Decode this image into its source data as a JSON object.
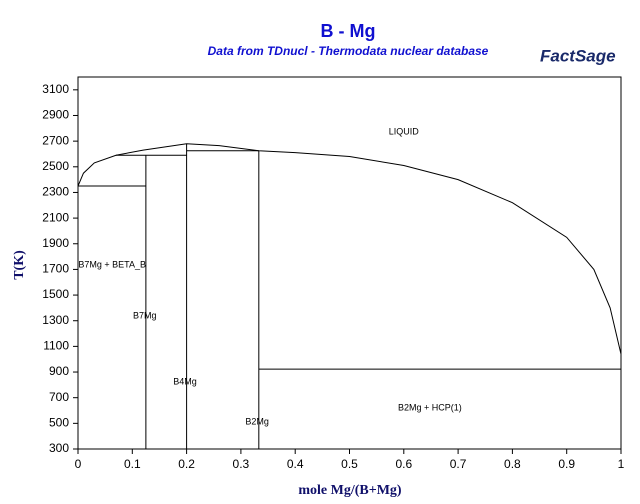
{
  "logo": "FactSage",
  "chart_data": {
    "type": "line",
    "title": "B - Mg",
    "subtitle": "Data from TDnucl - Thermodata nuclear database",
    "x_label": "mole Mg/(B+Mg)",
    "y_label": "T(K)",
    "xlim": [
      0,
      1
    ],
    "ylim": [
      300,
      3200
    ],
    "xticks": [
      0,
      0.1,
      0.2,
      0.3,
      0.4,
      0.5,
      0.6,
      0.7,
      0.8,
      0.9,
      1
    ],
    "yticks": [
      300,
      500,
      700,
      900,
      1100,
      1300,
      1500,
      1700,
      1900,
      2100,
      2300,
      2500,
      2700,
      2900,
      3100
    ],
    "color": "#000000",
    "series": [
      {
        "x": [
          0,
          0.01,
          0.03,
          0.07,
          0.12,
          0.2,
          0.26,
          0.333,
          0.4,
          0.5,
          0.6,
          0.7,
          0.8,
          0.9,
          0.95,
          0.98,
          1
        ],
        "values": [
          2350,
          2450,
          2530,
          2590,
          2630,
          2680,
          2665,
          2625,
          2610,
          2580,
          2510,
          2400,
          2220,
          1950,
          1700,
          1400,
          1040
        ]
      },
      {
        "x": [
          0,
          0.125
        ],
        "values": [
          2350,
          2350
        ]
      },
      {
        "x": [
          0.07,
          0.2
        ],
        "values": [
          2590,
          2590
        ]
      },
      {
        "x": [
          0.125,
          0.125
        ],
        "values": [
          300,
          2590
        ]
      },
      {
        "x": [
          0.2,
          0.2
        ],
        "values": [
          300,
          2680
        ]
      },
      {
        "x": [
          0.2,
          0.333
        ],
        "values": [
          2625,
          2625
        ]
      },
      {
        "x": [
          0.333,
          0.333
        ],
        "values": [
          300,
          2625
        ]
      },
      {
        "x": [
          0.333,
          1
        ],
        "values": [
          923,
          923
        ]
      }
    ],
    "annotations": [
      {
        "text": "LIQUID",
        "x": 0.6,
        "y": 2770
      },
      {
        "text": "B7Mg + BETA_B",
        "x": 0.063,
        "y": 1735
      },
      {
        "text": "B7Mg",
        "x": 0.123,
        "y": 1337
      },
      {
        "text": "B4Mg",
        "x": 0.197,
        "y": 823
      },
      {
        "text": "B2Mg",
        "x": 0.33,
        "y": 511
      },
      {
        "text": "B2Mg + HCP(1)",
        "x": 0.648,
        "y": 620
      }
    ]
  }
}
